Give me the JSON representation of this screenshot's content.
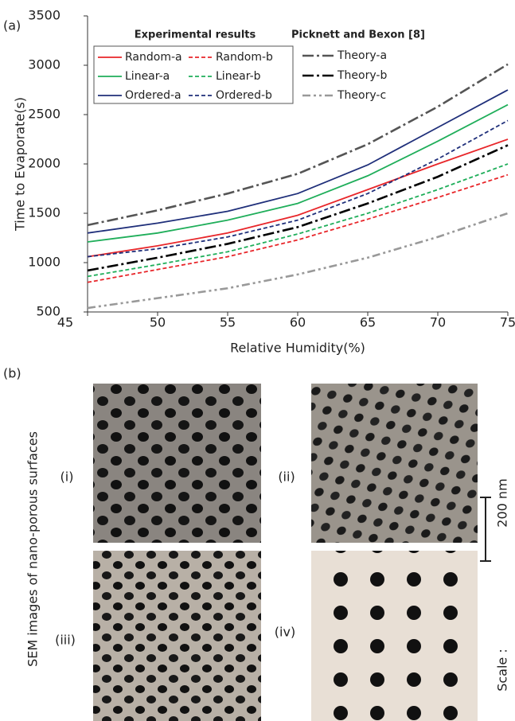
{
  "chart_data": {
    "type": "line",
    "panel_label": "(a)",
    "ylabel": "Time to Evaporate(s)",
    "xlabel": "Relative Humidity(%)",
    "legend_titles": [
      "Experimental results",
      "Picknett and Bexon [8]"
    ],
    "x": [
      45,
      50,
      55,
      60,
      65,
      70,
      75
    ],
    "xlim": [
      45,
      75
    ],
    "xticks": [
      45,
      50,
      55,
      60,
      65,
      70,
      75
    ],
    "ylim": [
      500,
      3500
    ],
    "yticks": [
      500,
      1000,
      1500,
      2000,
      2500,
      3000,
      3500
    ],
    "grid": false,
    "series": [
      {
        "name": "Random-a",
        "color": "#e8262a",
        "style": "solid",
        "values": [
          1060,
          1170,
          1300,
          1480,
          1740,
          2000,
          2250
        ]
      },
      {
        "name": "Random-b",
        "color": "#e8262a",
        "style": "dashed",
        "values": [
          800,
          930,
          1060,
          1230,
          1440,
          1660,
          1890
        ]
      },
      {
        "name": "Linear-a",
        "color": "#1fae5a",
        "style": "solid",
        "values": [
          1210,
          1300,
          1430,
          1600,
          1880,
          2230,
          2600
        ]
      },
      {
        "name": "Linear-b",
        "color": "#1fae5a",
        "style": "dashed",
        "values": [
          860,
          980,
          1110,
          1290,
          1500,
          1740,
          2000
        ]
      },
      {
        "name": "Ordered-a",
        "color": "#1f2f7a",
        "style": "solid",
        "values": [
          1300,
          1400,
          1520,
          1700,
          1990,
          2370,
          2750
        ]
      },
      {
        "name": "Ordered-b",
        "color": "#1f2f7a",
        "style": "dashed",
        "values": [
          1060,
          1140,
          1260,
          1430,
          1700,
          2050,
          2440
        ]
      },
      {
        "name": "Theory-a",
        "color": "#555555",
        "style": "dashdot",
        "values": [
          1380,
          1530,
          1700,
          1900,
          2200,
          2580,
          3010
        ]
      },
      {
        "name": "Theory-b",
        "color": "#000000",
        "style": "dashdot",
        "values": [
          920,
          1050,
          1190,
          1360,
          1600,
          1870,
          2190
        ]
      },
      {
        "name": "Theory-c",
        "color": "#999999",
        "style": "dashdotdot",
        "values": [
          540,
          640,
          740,
          880,
          1050,
          1260,
          1500
        ]
      }
    ]
  },
  "panel_b": {
    "label": "(b)",
    "side_title": "SEM images of nano-porous surfaces",
    "images": [
      "(i)",
      "(ii)",
      "(iii)",
      "(iv)"
    ],
    "scale_prefix": "Scale :",
    "scale_value": "200 nm"
  }
}
